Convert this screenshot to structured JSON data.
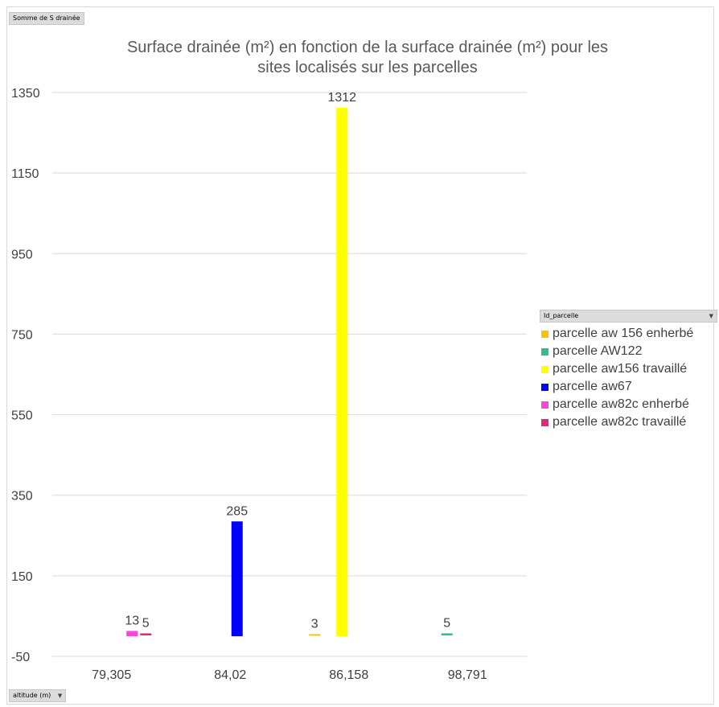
{
  "pivot": {
    "values_field": "Somme de S drainée",
    "row_field": "altitude (m)",
    "legend_field": "Id_parcelle"
  },
  "chart_data": {
    "type": "bar",
    "title": "Surface drainée (m²) en fonction de la surface drainée (m²) pour les sites localisés sur les parcelles",
    "title_lines": [
      "Surface drainée (m²) en fonction de la surface drainée (m²) pour les",
      "sites localisés sur les parcelles"
    ],
    "xlabel": "",
    "ylabel": "",
    "categories": [
      "79,305",
      "84,02",
      "86,158",
      "98,791"
    ],
    "ylim": [
      -50,
      1350
    ],
    "yticks": [
      "-50",
      "150",
      "350",
      "550",
      "750",
      "950",
      "1150",
      "1350"
    ],
    "grid": true,
    "legend_position": "right",
    "series": [
      {
        "name": "parcelle aw 156 enherbé",
        "color": "#ffc000",
        "values": [
          null,
          null,
          3,
          null
        ]
      },
      {
        "name": "parcelle AW122",
        "color": "#2fbf8f",
        "values": [
          null,
          null,
          null,
          5
        ]
      },
      {
        "name": "parcelle aw156 travaillé",
        "color": "#ffff00",
        "values": [
          null,
          null,
          1312,
          null
        ]
      },
      {
        "name": "parcelle aw67",
        "color": "#0000ff",
        "values": [
          null,
          285,
          null,
          null
        ]
      },
      {
        "name": "parcelle aw82c enherbé",
        "color": "#ff44dd",
        "values": [
          13,
          null,
          null,
          null
        ]
      },
      {
        "name": "parcelle aw82c travaillé",
        "color": "#e8247c",
        "values": [
          5,
          null,
          null,
          null
        ]
      }
    ]
  }
}
